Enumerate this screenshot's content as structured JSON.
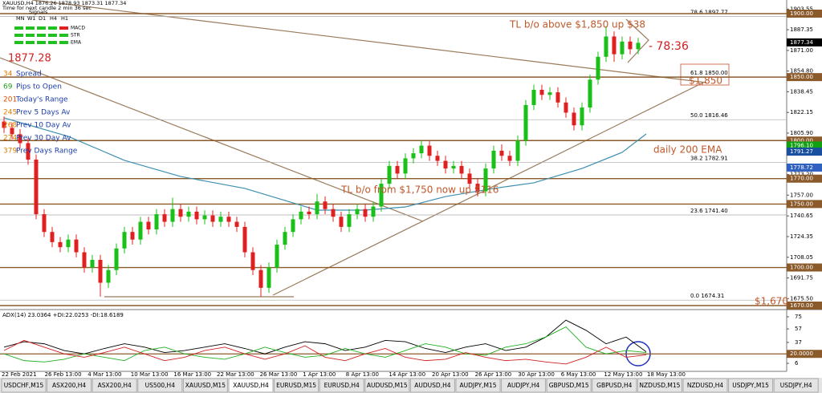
{
  "header": {
    "symbol_line": "XAUUSD,H4  1876.26 1878.93 1873.31 1877.34",
    "timer": "Time for next candle 2 min 36 sec",
    "signals": "Signals",
    "timeframes": [
      "MN",
      "W1",
      "D1",
      "H4",
      "H1"
    ],
    "indicators": [
      "MACD",
      "STR",
      "EMA"
    ],
    "price": "1877.28"
  },
  "info_panel": [
    {
      "value": "34",
      "label": "Spread",
      "color": "#e08000"
    },
    {
      "value": "69",
      "label": "Pips to Open",
      "color": "#20a020"
    },
    {
      "value": "201",
      "label": "Today's Range",
      "color": "#e05000"
    },
    {
      "value": "245",
      "label": "Prev 5 Days Av",
      "color": "#e08000"
    },
    {
      "value": "268",
      "label": "Prev 10 Day Av",
      "color": "#e08000"
    },
    {
      "value": "274",
      "label": "Prev 30 Day Av",
      "color": "#e08000"
    },
    {
      "value": "379",
      "label": "Prev Days Range",
      "color": "#e08000"
    }
  ],
  "chart_data": {
    "type": "candlestick",
    "up_color": "#18c018",
    "down_color": "#e02020",
    "ylim": [
      1667.47,
      1910.74
    ],
    "yticks": [
      1903.55,
      1887.35,
      {
        "value": 1871,
        "label": "1871.00"
      },
      {
        "value": 1854.8,
        "label": "1854.80"
      },
      1838.45,
      1822.15,
      {
        "value": 1805.9,
        "label": "1805.90"
      },
      1789.55,
      {
        "value": 1773.2,
        "label": "1773.20"
      },
      {
        "value": 1757,
        "label": "1757.00"
      },
      1740.65,
      1724.35,
      1708.05,
      1691.75,
      {
        "value": 1675.5,
        "label": "1675.50"
      }
    ],
    "x_labels": [
      "22 Feb 2021",
      "26 Feb 13:00",
      "4 Mar 13:00",
      "10 Mar 13:00",
      "16 Mar 13:00",
      "22 Mar 13:00",
      "26 Mar 13:00",
      "1 Apr 13:00",
      "8 Apr 13:00",
      "14 Apr 13:00",
      "20 Apr 13:00",
      "26 Apr 13:00",
      "30 Apr 13:00",
      "6 May 13:00",
      "12 May 13:00",
      "18 May 13:00"
    ],
    "candles": [
      [
        1815,
        1819,
        1806,
        1810
      ],
      [
        1810,
        1814,
        1801,
        1805
      ],
      [
        1805,
        1809,
        1794,
        1798
      ],
      [
        1798,
        1802,
        1781,
        1785
      ],
      [
        1785,
        1789,
        1738,
        1742
      ],
      [
        1742,
        1746,
        1724,
        1728
      ],
      [
        1728,
        1732,
        1716,
        1720
      ],
      [
        1720,
        1724,
        1712,
        1716
      ],
      [
        1716,
        1726,
        1712,
        1722
      ],
      [
        1722,
        1726,
        1708,
        1712
      ],
      [
        1712,
        1716,
        1696,
        1700
      ],
      [
        1700,
        1710,
        1696,
        1706
      ],
      [
        1706,
        1710,
        1677,
        1688
      ],
      [
        1688,
        1702,
        1684,
        1698
      ],
      [
        1698,
        1719,
        1694,
        1715
      ],
      [
        1715,
        1732,
        1711,
        1728
      ],
      [
        1728,
        1732,
        1718,
        1722
      ],
      [
        1722,
        1740,
        1718,
        1736
      ],
      [
        1736,
        1740,
        1726,
        1730
      ],
      [
        1730,
        1746,
        1726,
        1742
      ],
      [
        1742,
        1746,
        1732,
        1736
      ],
      [
        1736,
        1755,
        1732,
        1746
      ],
      [
        1746,
        1750,
        1736,
        1740
      ],
      [
        1740,
        1748,
        1736,
        1744
      ],
      [
        1744,
        1748,
        1734,
        1738
      ],
      [
        1738,
        1745,
        1734,
        1741
      ],
      [
        1741,
        1745,
        1732,
        1736
      ],
      [
        1736,
        1744,
        1732,
        1740
      ],
      [
        1740,
        1744,
        1732,
        1736
      ],
      [
        1736,
        1740,
        1728,
        1732
      ],
      [
        1732,
        1736,
        1708,
        1712
      ],
      [
        1712,
        1716,
        1694,
        1698
      ],
      [
        1698,
        1702,
        1677,
        1684
      ],
      [
        1684,
        1704,
        1680,
        1700
      ],
      [
        1700,
        1722,
        1696,
        1718
      ],
      [
        1718,
        1732,
        1714,
        1728
      ],
      [
        1728,
        1742,
        1724,
        1738
      ],
      [
        1738,
        1748,
        1734,
        1744
      ],
      [
        1744,
        1748,
        1738,
        1742
      ],
      [
        1742,
        1758,
        1738,
        1752
      ],
      [
        1752,
        1756,
        1742,
        1746
      ],
      [
        1746,
        1750,
        1736,
        1740
      ],
      [
        1740,
        1744,
        1728,
        1732
      ],
      [
        1732,
        1746,
        1728,
        1742
      ],
      [
        1742,
        1750,
        1738,
        1746
      ],
      [
        1746,
        1750,
        1736,
        1740
      ],
      [
        1740,
        1752,
        1736,
        1748
      ],
      [
        1748,
        1770,
        1744,
        1766
      ],
      [
        1766,
        1784,
        1762,
        1780
      ],
      [
        1780,
        1784,
        1770,
        1774
      ],
      [
        1774,
        1790,
        1770,
        1786
      ],
      [
        1786,
        1794,
        1782,
        1790
      ],
      [
        1790,
        1800,
        1786,
        1796
      ],
      [
        1796,
        1800,
        1784,
        1788
      ],
      [
        1788,
        1792,
        1780,
        1784
      ],
      [
        1784,
        1788,
        1774,
        1778
      ],
      [
        1778,
        1784,
        1774,
        1780
      ],
      [
        1780,
        1784,
        1770,
        1774
      ],
      [
        1774,
        1778,
        1762,
        1766
      ],
      [
        1766,
        1770,
        1756,
        1760
      ],
      [
        1760,
        1782,
        1756,
        1778
      ],
      [
        1778,
        1796,
        1774,
        1792
      ],
      [
        1792,
        1797,
        1784,
        1788
      ],
      [
        1788,
        1792,
        1780,
        1784
      ],
      [
        1784,
        1804,
        1780,
        1800
      ],
      [
        1800,
        1832,
        1796,
        1828
      ],
      [
        1828,
        1844,
        1824,
        1840
      ],
      [
        1840,
        1844,
        1832,
        1836
      ],
      [
        1836,
        1842,
        1832,
        1838
      ],
      [
        1838,
        1842,
        1826,
        1830
      ],
      [
        1830,
        1834,
        1818,
        1822
      ],
      [
        1822,
        1826,
        1808,
        1812
      ],
      [
        1812,
        1830,
        1808,
        1826
      ],
      [
        1826,
        1852,
        1822,
        1848
      ],
      [
        1848,
        1870,
        1844,
        1866
      ],
      [
        1866,
        1890,
        1862,
        1882
      ],
      [
        1882,
        1886,
        1862,
        1868
      ],
      [
        1868,
        1882,
        1864,
        1878
      ],
      [
        1878,
        1882,
        1868,
        1872
      ],
      [
        1872,
        1881,
        1868,
        1877
      ]
    ],
    "ema": {
      "color": "#3d8fb0",
      "x": [
        0,
        8,
        15,
        22,
        30,
        35,
        39,
        45,
        50,
        55,
        61,
        66,
        72,
        77,
        80
      ],
      "values": [
        1817.9,
        1803.3,
        1784.4,
        1771.7,
        1762.3,
        1752.8,
        1745.2,
        1745.2,
        1747.7,
        1755.9,
        1762.3,
        1766.7,
        1778.0,
        1790.7,
        1805.2
      ]
    },
    "price_levels": [
      {
        "value": 1900,
        "label": "1900.00",
        "color": "#8b5a2b",
        "line": true
      },
      {
        "value": 1877.34,
        "label": "1877.34",
        "color": "#000000",
        "line": false
      },
      {
        "value": 1850,
        "label": "1850.00",
        "color": "#8b5a2b",
        "line": true
      },
      {
        "value": 1800,
        "label": "1800.00",
        "color": "#8b5a2b",
        "line": true
      },
      {
        "value": 1796.1,
        "label": "1796.10",
        "color": "#10a010",
        "line": false
      },
      {
        "value": 1791.27,
        "label": "1791.27",
        "color": "#1a4fa0",
        "line": false
      },
      {
        "value": 1778.72,
        "label": "1778.72",
        "color": "#3060c0",
        "line": false
      },
      {
        "value": 1770,
        "label": "1770.00",
        "color": "#8b5a2b",
        "line": true
      },
      {
        "value": 1750,
        "label": "1750.00",
        "color": "#8b5a2b",
        "line": true
      },
      {
        "value": 1700,
        "label": "1700.00",
        "color": "#8b5a2b",
        "line": true
      },
      {
        "value": 1670,
        "label": "1670.00",
        "color": "#8b5a2b",
        "line": true
      }
    ],
    "fib": [
      {
        "label": "78.6  1897.77",
        "value": 1897.77
      },
      {
        "label": "61.8  1850.00",
        "value": 1850
      },
      {
        "label": "50.0  1816.46",
        "value": 1816.46
      },
      {
        "label": "38.2  1782.91",
        "value": 1782.91
      },
      {
        "label": "23.6  1741.40",
        "value": 1741.4
      },
      {
        "label": "0.0  1674.31",
        "value": 1674.31
      }
    ],
    "annotations": [
      "TL b/o above $1,850 up $38",
      "- 78:36",
      "$1,850",
      "daily 200 EMA",
      "TL b/o from $1,750 now up $116",
      "$1,670"
    ],
    "adx": {
      "label": "ADX(14) 23.0364 +DI:22.0253 -DI:18.6189",
      "ylim": [
        -5.9,
        84.5
      ],
      "yticks": [
        75,
        57,
        37,
        6
      ],
      "level": {
        "value": 20,
        "label": "20.0000"
      },
      "x": [
        0,
        2.5,
        5,
        7.5,
        10,
        12.5,
        15,
        17.5,
        20,
        22.5,
        25,
        27.5,
        30,
        32.5,
        35,
        37.5,
        40,
        42.5,
        45,
        47.5,
        50,
        52.5,
        55,
        57.5,
        60,
        62.5,
        65,
        67.5,
        70,
        72.5,
        75,
        77.5,
        80
      ],
      "series": [
        {
          "color": "#000000",
          "values": [
            30,
            38,
            35,
            25,
            20,
            28,
            35,
            30,
            22,
            25,
            30,
            35,
            28,
            20,
            30,
            38,
            35,
            25,
            30,
            40,
            38,
            28,
            22,
            30,
            35,
            25,
            30,
            45,
            70,
            55,
            35,
            45,
            23.04
          ]
        },
        {
          "color": "#20b020",
          "values": [
            20,
            10,
            8,
            12,
            20,
            15,
            10,
            25,
            30,
            20,
            15,
            12,
            20,
            30,
            22,
            15,
            18,
            28,
            20,
            15,
            25,
            35,
            30,
            20,
            18,
            30,
            35,
            45,
            60,
            30,
            20,
            25,
            22.03
          ]
        },
        {
          "color": "#d02020",
          "values": [
            25,
            40,
            30,
            20,
            15,
            22,
            30,
            20,
            10,
            15,
            25,
            30,
            20,
            12,
            20,
            32,
            15,
            10,
            20,
            28,
            15,
            10,
            12,
            22,
            15,
            10,
            12,
            8,
            5,
            15,
            30,
            15,
            18.62
          ]
        }
      ]
    }
  },
  "tabs": [
    "USDCHF,M15",
    "ASX200,H4",
    "ASX200,H4",
    "US500,H4",
    "XAUUSD,M15",
    "XAUUSD,H4",
    "EURUSD,M15",
    "EURUSD,H4",
    "AUDUSD,M15",
    "AUDUSD,H4",
    "AUDJPY,M15",
    "AUDJPY,H4",
    "GBPUSD,M15",
    "GBPUSD,H4",
    "NZDUSD,M15",
    "NZDUSD,H4",
    "USDJPY,M15",
    "USDJPY,H4"
  ],
  "active_tab": 5
}
